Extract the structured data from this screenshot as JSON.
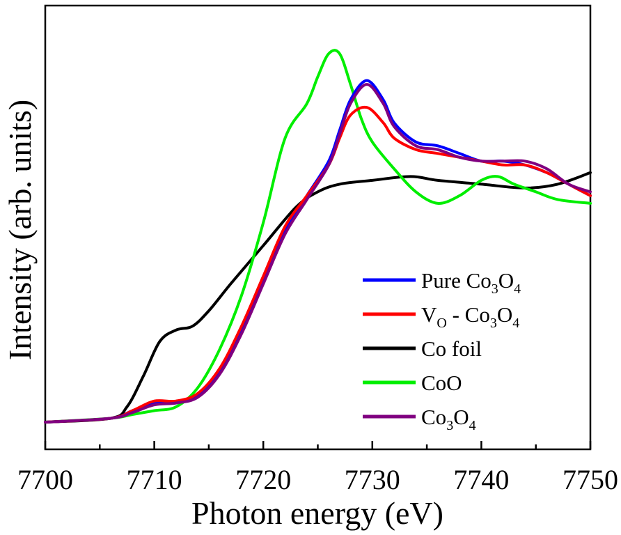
{
  "chart_data": {
    "type": "line",
    "title": "",
    "xlabel": "Photon energy (eV)",
    "ylabel": "Intensity (arb. units)",
    "xlim": [
      7700,
      7750
    ],
    "ylim": [
      0,
      1.0
    ],
    "xticks": [
      "7700",
      "7710",
      "7720",
      "7730",
      "7740",
      "7750"
    ],
    "grid": false,
    "legend_position": "center-right",
    "series": [
      {
        "name": "Pure Co3O4",
        "label_parts": [
          "Pure Co",
          "3",
          "O",
          "4"
        ],
        "color": "#0000ff",
        "x": [
          7700,
          7706,
          7708,
          7710,
          7712,
          7714,
          7716,
          7718,
          7720,
          7722,
          7724,
          7726,
          7727,
          7728,
          7729.5,
          7731,
          7732,
          7734,
          7736,
          7738,
          7740,
          7742,
          7744,
          7746,
          7748,
          7750
        ],
        "y": [
          0.0,
          0.01,
          0.03,
          0.05,
          0.05,
          0.07,
          0.13,
          0.24,
          0.37,
          0.5,
          0.59,
          0.68,
          0.76,
          0.84,
          0.89,
          0.84,
          0.78,
          0.73,
          0.72,
          0.7,
          0.68,
          0.68,
          0.67,
          0.65,
          0.62,
          0.59
        ]
      },
      {
        "name": "VO - Co3O4",
        "label_parts": [
          "V",
          "O",
          " - Co",
          "3",
          "O",
          "4"
        ],
        "color": "#ff0000",
        "x": [
          7700,
          7706,
          7708,
          7710,
          7712,
          7714,
          7716,
          7718,
          7720,
          7722,
          7724,
          7726,
          7727,
          7728,
          7729.5,
          7731,
          7732,
          7734,
          7736,
          7738,
          7740,
          7742,
          7744,
          7746,
          7748,
          7750
        ],
        "y": [
          0.0,
          0.01,
          0.03,
          0.055,
          0.055,
          0.075,
          0.14,
          0.25,
          0.38,
          0.51,
          0.59,
          0.67,
          0.74,
          0.8,
          0.82,
          0.78,
          0.74,
          0.71,
          0.7,
          0.69,
          0.68,
          0.67,
          0.67,
          0.65,
          0.62,
          0.59
        ]
      },
      {
        "name": "Co foil",
        "label_parts": [
          "Co foil"
        ],
        "color": "#000000",
        "x": [
          7700,
          7706,
          7707.5,
          7709,
          7710.5,
          7712,
          7713.5,
          7715,
          7717,
          7720,
          7723,
          7725,
          7727,
          7730,
          7733.5,
          7736,
          7740,
          7744,
          7747,
          7750
        ],
        "y": [
          0.0,
          0.01,
          0.04,
          0.12,
          0.21,
          0.24,
          0.25,
          0.29,
          0.36,
          0.46,
          0.56,
          0.6,
          0.62,
          0.63,
          0.64,
          0.63,
          0.62,
          0.61,
          0.62,
          0.65
        ]
      },
      {
        "name": "CoO",
        "label_parts": [
          "CoO"
        ],
        "color": "#00ee00",
        "x": [
          7700,
          7706,
          7708,
          7710,
          7712,
          7714,
          7716,
          7718,
          7720,
          7722,
          7724,
          7725,
          7726,
          7727,
          7728,
          7729,
          7730,
          7732,
          7734,
          7736,
          7738,
          7740,
          7741.5,
          7743,
          7745,
          7747,
          7750
        ],
        "y": [
          0.0,
          0.01,
          0.02,
          0.03,
          0.04,
          0.09,
          0.19,
          0.33,
          0.52,
          0.74,
          0.83,
          0.9,
          0.96,
          0.96,
          0.88,
          0.79,
          0.73,
          0.66,
          0.6,
          0.57,
          0.59,
          0.63,
          0.64,
          0.62,
          0.6,
          0.58,
          0.57
        ]
      },
      {
        "name": "Co3O4",
        "label_parts": [
          "Co",
          "3",
          "O",
          "4"
        ],
        "color": "#800080",
        "x": [
          7700,
          7706,
          7708,
          7710,
          7712,
          7714,
          7716,
          7718,
          7720,
          7722,
          7724,
          7726,
          7727,
          7728,
          7729.5,
          7731,
          7732,
          7734,
          7736,
          7738,
          7740,
          7742,
          7744,
          7746,
          7748,
          7750
        ],
        "y": [
          0.0,
          0.01,
          0.025,
          0.045,
          0.05,
          0.065,
          0.125,
          0.23,
          0.36,
          0.49,
          0.58,
          0.67,
          0.75,
          0.83,
          0.88,
          0.83,
          0.77,
          0.72,
          0.71,
          0.69,
          0.68,
          0.68,
          0.68,
          0.66,
          0.62,
          0.6
        ]
      }
    ]
  }
}
